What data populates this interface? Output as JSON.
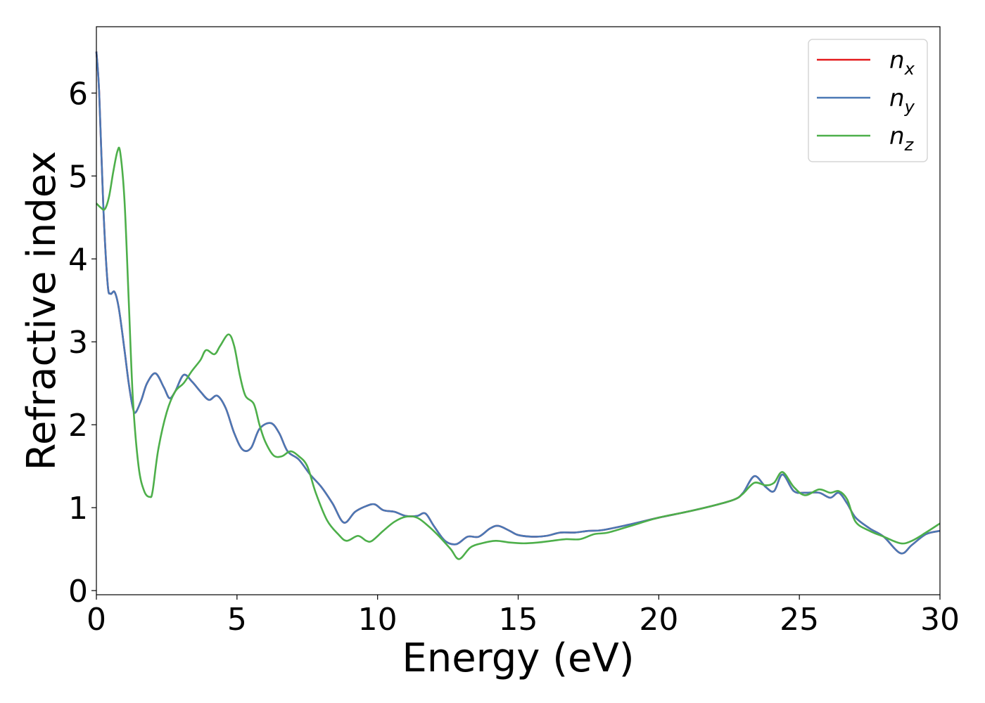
{
  "chart_data": {
    "type": "line",
    "xlabel": "Energy (eV)",
    "ylabel": "Refractive index",
    "xlim": [
      0,
      30
    ],
    "ylim": [
      -0.05,
      6.8
    ],
    "xticks": [
      "0",
      "5",
      "10",
      "15",
      "20",
      "25",
      "30"
    ],
    "yticks": [
      "0",
      "1",
      "2",
      "3",
      "4",
      "5",
      "6"
    ],
    "grid": false,
    "legend_position": "top-right",
    "series": [
      {
        "name": "n_x",
        "label_base": "n",
        "label_sub": "x",
        "color": "#e41a1c",
        "x": [
          0,
          0.1,
          0.25,
          0.4,
          0.5,
          0.65,
          0.8,
          1.0,
          1.15,
          1.3,
          1.4,
          1.6,
          1.8,
          2.1,
          2.4,
          2.6,
          2.8,
          3.1,
          3.4,
          3.7,
          4.0,
          4.3,
          4.6,
          4.9,
          5.2,
          5.5,
          5.8,
          6.2,
          6.5,
          6.8,
          7.2,
          7.6,
          8.0,
          8.4,
          8.8,
          9.2,
          9.6,
          9.9,
          10.2,
          10.6,
          11.0,
          11.4,
          11.7,
          12.0,
          12.4,
          12.8,
          13.2,
          13.6,
          14.0,
          14.3,
          14.7,
          15.0,
          15.5,
          16.0,
          16.5,
          17.0,
          17.5,
          18.0,
          19.0,
          20.0,
          21.0,
          22.0,
          22.7,
          23.0,
          23.4,
          23.8,
          24.1,
          24.4,
          24.8,
          25.2,
          25.7,
          26.1,
          26.4,
          26.7,
          27.0,
          27.5,
          28.0,
          28.6,
          29.0,
          29.5,
          30.0
        ],
        "y": [
          6.5,
          6.0,
          4.6,
          3.7,
          3.58,
          3.6,
          3.4,
          2.9,
          2.5,
          2.2,
          2.15,
          2.3,
          2.5,
          2.62,
          2.45,
          2.32,
          2.4,
          2.6,
          2.52,
          2.4,
          2.3,
          2.35,
          2.2,
          1.9,
          1.7,
          1.72,
          1.95,
          2.02,
          1.9,
          1.68,
          1.58,
          1.4,
          1.25,
          1.05,
          0.82,
          0.95,
          1.02,
          1.04,
          0.97,
          0.95,
          0.9,
          0.9,
          0.93,
          0.78,
          0.6,
          0.56,
          0.65,
          0.65,
          0.75,
          0.78,
          0.72,
          0.67,
          0.65,
          0.66,
          0.7,
          0.7,
          0.72,
          0.73,
          0.8,
          0.88,
          0.95,
          1.03,
          1.1,
          1.18,
          1.38,
          1.25,
          1.2,
          1.4,
          1.2,
          1.18,
          1.18,
          1.12,
          1.18,
          1.05,
          0.88,
          0.75,
          0.65,
          0.45,
          0.55,
          0.68,
          0.72
        ]
      },
      {
        "name": "n_y",
        "label_base": "n",
        "label_sub": "y",
        "color": "#4a78b5",
        "x": [
          0,
          0.1,
          0.25,
          0.4,
          0.5,
          0.65,
          0.8,
          1.0,
          1.15,
          1.3,
          1.4,
          1.6,
          1.8,
          2.1,
          2.4,
          2.6,
          2.8,
          3.1,
          3.4,
          3.7,
          4.0,
          4.3,
          4.6,
          4.9,
          5.2,
          5.5,
          5.8,
          6.2,
          6.5,
          6.8,
          7.2,
          7.6,
          8.0,
          8.4,
          8.8,
          9.2,
          9.6,
          9.9,
          10.2,
          10.6,
          11.0,
          11.4,
          11.7,
          12.0,
          12.4,
          12.8,
          13.2,
          13.6,
          14.0,
          14.3,
          14.7,
          15.0,
          15.5,
          16.0,
          16.5,
          17.0,
          17.5,
          18.0,
          19.0,
          20.0,
          21.0,
          22.0,
          22.7,
          23.0,
          23.4,
          23.8,
          24.1,
          24.4,
          24.8,
          25.2,
          25.7,
          26.1,
          26.4,
          26.7,
          27.0,
          27.5,
          28.0,
          28.6,
          29.0,
          29.5,
          30.0
        ],
        "y": [
          6.5,
          6.0,
          4.6,
          3.7,
          3.58,
          3.6,
          3.4,
          2.9,
          2.5,
          2.2,
          2.15,
          2.3,
          2.5,
          2.62,
          2.45,
          2.32,
          2.4,
          2.6,
          2.52,
          2.4,
          2.3,
          2.35,
          2.2,
          1.9,
          1.7,
          1.72,
          1.95,
          2.02,
          1.9,
          1.68,
          1.58,
          1.4,
          1.25,
          1.05,
          0.82,
          0.95,
          1.02,
          1.04,
          0.97,
          0.95,
          0.9,
          0.9,
          0.93,
          0.78,
          0.6,
          0.56,
          0.65,
          0.65,
          0.75,
          0.78,
          0.72,
          0.67,
          0.65,
          0.66,
          0.7,
          0.7,
          0.72,
          0.73,
          0.8,
          0.88,
          0.95,
          1.03,
          1.1,
          1.18,
          1.38,
          1.25,
          1.2,
          1.4,
          1.2,
          1.18,
          1.18,
          1.12,
          1.18,
          1.05,
          0.88,
          0.75,
          0.65,
          0.45,
          0.55,
          0.68,
          0.72
        ]
      },
      {
        "name": "n_z",
        "label_base": "n",
        "label_sub": "z",
        "color": "#4daf4a",
        "x": [
          0,
          0.15,
          0.3,
          0.45,
          0.6,
          0.75,
          0.85,
          1.0,
          1.15,
          1.3,
          1.5,
          1.7,
          1.9,
          2.0,
          2.2,
          2.5,
          2.8,
          3.1,
          3.4,
          3.7,
          3.9,
          4.2,
          4.4,
          4.7,
          4.9,
          5.1,
          5.3,
          5.6,
          5.8,
          6.0,
          6.3,
          6.6,
          6.9,
          7.2,
          7.5,
          7.8,
          8.2,
          8.6,
          8.9,
          9.3,
          9.6,
          9.8,
          10.2,
          10.6,
          11.0,
          11.4,
          11.8,
          12.2,
          12.6,
          12.9,
          13.3,
          13.7,
          14.2,
          14.7,
          15.2,
          15.7,
          16.2,
          16.7,
          17.2,
          17.7,
          18.2,
          19.0,
          20.0,
          21.0,
          22.0,
          22.7,
          23.0,
          23.4,
          23.8,
          24.1,
          24.4,
          24.8,
          25.2,
          25.7,
          26.1,
          26.4,
          26.7,
          27.0,
          27.5,
          28.0,
          28.6,
          29.0,
          29.5,
          30.0
        ],
        "y": [
          4.67,
          4.62,
          4.6,
          4.75,
          5.05,
          5.3,
          5.28,
          4.7,
          3.5,
          2.3,
          1.5,
          1.2,
          1.13,
          1.2,
          1.7,
          2.15,
          2.4,
          2.5,
          2.65,
          2.78,
          2.9,
          2.85,
          2.95,
          3.09,
          2.95,
          2.6,
          2.35,
          2.25,
          2.0,
          1.8,
          1.63,
          1.62,
          1.68,
          1.62,
          1.5,
          1.18,
          0.85,
          0.68,
          0.6,
          0.66,
          0.6,
          0.6,
          0.72,
          0.83,
          0.89,
          0.88,
          0.78,
          0.65,
          0.5,
          0.38,
          0.52,
          0.57,
          0.6,
          0.58,
          0.57,
          0.58,
          0.6,
          0.62,
          0.62,
          0.68,
          0.7,
          0.78,
          0.88,
          0.95,
          1.03,
          1.1,
          1.17,
          1.3,
          1.27,
          1.3,
          1.43,
          1.25,
          1.15,
          1.22,
          1.18,
          1.2,
          1.1,
          0.83,
          0.72,
          0.65,
          0.57,
          0.6,
          0.7,
          0.81
        ]
      }
    ]
  }
}
